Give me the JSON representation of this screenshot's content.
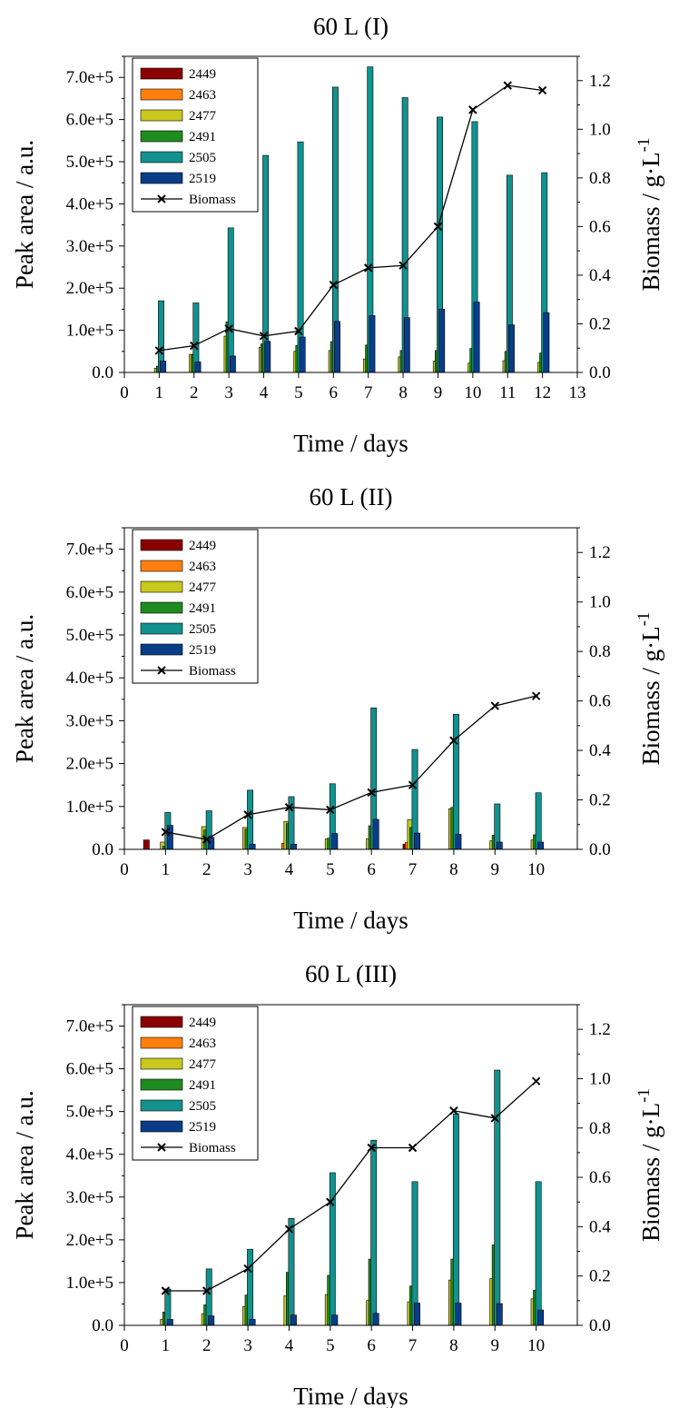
{
  "series_names": [
    "2449",
    "2463",
    "2477",
    "2491",
    "2505",
    "2519"
  ],
  "line_series_name": "Biomass",
  "colors": {
    "2449": "#8B0000",
    "2463": "#FF7F0E",
    "2477": "#C8C81E",
    "2491": "#1E8C1E",
    "2505": "#13918E",
    "2519": "#0A3D87",
    "line": "#000000"
  },
  "chart_data": [
    {
      "type": "bar",
      "title": "60 L (I)",
      "xlabel": "Time / days",
      "ylabel": "Peak area / a.u.",
      "y2label": "Biomass / g·L",
      "y2label_sup": "-1",
      "xlim": [
        0,
        13
      ],
      "xticks": [
        "0",
        "1",
        "2",
        "3",
        "4",
        "5",
        "6",
        "7",
        "8",
        "9",
        "10",
        "11",
        "12",
        "13"
      ],
      "ylim": [
        0,
        750000
      ],
      "yticks": [
        "0.0",
        "1.0e+5",
        "2.0e+5",
        "3.0e+5",
        "4.0e+5",
        "5.0e+5",
        "6.0e+5",
        "7.0e+5"
      ],
      "y2lim": [
        0,
        1.3
      ],
      "y2ticks": [
        "0.0",
        "0.2",
        "0.4",
        "0.6",
        "0.8",
        "1.0",
        "1.2"
      ],
      "legend_position": "top-left",
      "x": [
        1,
        2,
        3,
        4,
        5,
        6,
        7,
        8,
        9,
        10,
        11,
        12
      ],
      "series": [
        {
          "name": "2449",
          "values": [
            0,
            0,
            0,
            0,
            0,
            0,
            0,
            0,
            0,
            0,
            0,
            0
          ]
        },
        {
          "name": "2463",
          "values": [
            0,
            0,
            0,
            0,
            0,
            0,
            0,
            0,
            0,
            0,
            0,
            0
          ]
        },
        {
          "name": "2477",
          "values": [
            10000,
            43000,
            86000,
            60000,
            50000,
            52000,
            32000,
            37000,
            27000,
            22000,
            28000,
            24000
          ]
        },
        {
          "name": "2491",
          "values": [
            15000,
            42000,
            120000,
            68000,
            64000,
            73000,
            65000,
            52000,
            52000,
            57000,
            50000,
            46000
          ]
        },
        {
          "name": "2505",
          "values": [
            170000,
            165000,
            343000,
            515000,
            547000,
            677000,
            725000,
            652000,
            606000,
            595000,
            468000,
            474000
          ]
        },
        {
          "name": "2519",
          "values": [
            27000,
            25000,
            39000,
            74000,
            84000,
            121000,
            135000,
            130000,
            150000,
            167000,
            113000,
            142000
          ]
        }
      ],
      "line": {
        "name": "Biomass",
        "x": [
          1,
          2,
          3,
          4,
          5,
          6,
          7,
          8,
          9,
          10,
          11,
          12
        ],
        "values": [
          0.09,
          0.11,
          0.18,
          0.15,
          0.17,
          0.36,
          0.43,
          0.44,
          0.6,
          1.08,
          1.18,
          1.16
        ]
      }
    },
    {
      "type": "bar",
      "title": "60 L (II)",
      "xlabel": "Time / days",
      "ylabel": "Peak area / a.u.",
      "y2label": "Biomass / g·L",
      "y2label_sup": "-1",
      "xlim": [
        0,
        11
      ],
      "xticks": [
        "0",
        "1",
        "2",
        "3",
        "4",
        "5",
        "6",
        "7",
        "8",
        "9",
        "10"
      ],
      "ylim": [
        0,
        750000
      ],
      "yticks": [
        "0.0",
        "1.0e+5",
        "2.0e+5",
        "3.0e+5",
        "4.0e+5",
        "5.0e+5",
        "6.0e+5",
        "7.0e+5"
      ],
      "y2lim": [
        0,
        1.3
      ],
      "y2ticks": [
        "0.0",
        "0.2",
        "0.4",
        "0.6",
        "0.8",
        "1.0",
        "1.2"
      ],
      "legend_position": "top-left",
      "x": [
        0.7,
        1,
        2,
        3,
        4,
        5,
        6,
        7,
        8,
        9,
        10
      ],
      "series": [
        {
          "name": "2449",
          "values": [
            22000,
            0,
            0,
            0,
            0,
            0,
            0,
            12000,
            0,
            0,
            0
          ]
        },
        {
          "name": "2463",
          "values": [
            0,
            0,
            0,
            0,
            14000,
            0,
            0,
            16000,
            0,
            0,
            0
          ]
        },
        {
          "name": "2477",
          "values": [
            0,
            17000,
            53000,
            51000,
            65000,
            24000,
            25000,
            69000,
            95000,
            20000,
            22000
          ]
        },
        {
          "name": "2491",
          "values": [
            0,
            7000,
            45000,
            47000,
            60000,
            26000,
            55000,
            51000,
            98000,
            33000,
            34000
          ]
        },
        {
          "name": "2505",
          "values": [
            0,
            86000,
            90000,
            138000,
            123000,
            153000,
            330000,
            233000,
            315000,
            106000,
            132000
          ]
        },
        {
          "name": "2519",
          "values": [
            0,
            56000,
            28000,
            12000,
            12000,
            37000,
            70000,
            38000,
            35000,
            17000,
            17000
          ]
        }
      ],
      "line": {
        "name": "Biomass",
        "x": [
          1,
          2,
          3,
          4,
          5,
          6,
          7,
          8,
          9,
          10
        ],
        "values": [
          0.07,
          0.04,
          0.14,
          0.17,
          0.16,
          0.23,
          0.26,
          0.44,
          0.58,
          0.62
        ]
      }
    },
    {
      "type": "bar",
      "title": "60 L (III)",
      "xlabel": "Time / days",
      "ylabel": "Peak area / a.u.",
      "y2label": "Biomass / g·L",
      "y2label_sup": "-1",
      "xlim": [
        0,
        11
      ],
      "xticks": [
        "0",
        "1",
        "2",
        "3",
        "4",
        "5",
        "6",
        "7",
        "8",
        "9",
        "10"
      ],
      "ylim": [
        0,
        750000
      ],
      "yticks": [
        "0.0",
        "1.0e+5",
        "2.0e+5",
        "3.0e+5",
        "4.0e+5",
        "5.0e+5",
        "6.0e+5",
        "7.0e+5"
      ],
      "y2lim": [
        0,
        1.3
      ],
      "y2ticks": [
        "0.0",
        "0.2",
        "0.4",
        "0.6",
        "0.8",
        "1.0",
        "1.2"
      ],
      "legend_position": "top-left",
      "x": [
        1,
        2,
        3,
        4,
        5,
        6,
        7,
        8,
        9,
        10
      ],
      "series": [
        {
          "name": "2449",
          "values": [
            0,
            0,
            0,
            0,
            0,
            0,
            0,
            0,
            0,
            0
          ]
        },
        {
          "name": "2463",
          "values": [
            0,
            0,
            0,
            0,
            0,
            0,
            0,
            0,
            0,
            0
          ]
        },
        {
          "name": "2477",
          "values": [
            14000,
            27000,
            44000,
            69000,
            72000,
            58000,
            55000,
            106000,
            109000,
            62000
          ]
        },
        {
          "name": "2491",
          "values": [
            31000,
            48000,
            71000,
            124000,
            117000,
            155000,
            92000,
            155000,
            188000,
            82000
          ]
        },
        {
          "name": "2505",
          "values": [
            85000,
            132000,
            178000,
            250000,
            357000,
            433000,
            336000,
            495000,
            597000,
            336000
          ]
        },
        {
          "name": "2519",
          "values": [
            14000,
            22000,
            14000,
            24000,
            24000,
            28000,
            52000,
            52000,
            51000,
            36000
          ]
        }
      ],
      "line": {
        "name": "Biomass",
        "x": [
          1,
          2,
          3,
          4,
          5,
          6,
          7,
          8,
          9,
          10
        ],
        "values": [
          0.14,
          0.14,
          0.23,
          0.39,
          0.5,
          0.72,
          0.72,
          0.87,
          0.84,
          0.99
        ]
      }
    }
  ]
}
